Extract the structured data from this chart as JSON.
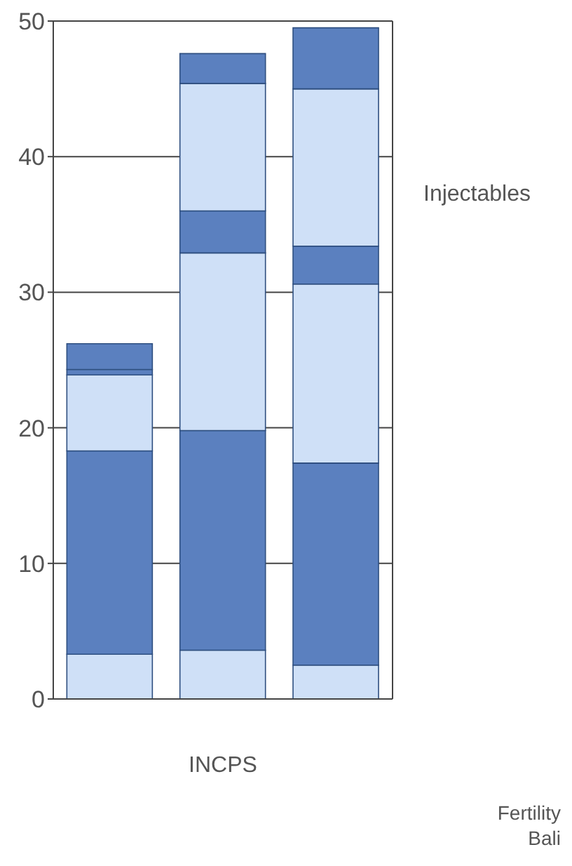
{
  "chart_data": {
    "type": "bar",
    "stacked": true,
    "xlabel": "INCPS",
    "categories": [
      null,
      null,
      null
    ],
    "series": [
      {
        "color": "#cfe0f7",
        "values": [
          3.3,
          3.6,
          2.5
        ]
      },
      {
        "color": "#5b80bf",
        "values": [
          15.0,
          16.2,
          14.9
        ]
      },
      {
        "color": "#cfe0f7",
        "values": [
          5.6,
          13.1,
          13.2
        ]
      },
      {
        "color": "#5b80bf",
        "values": [
          0.4,
          3.1,
          2.8
        ]
      },
      {
        "color": "#cfe0f7",
        "values": [
          null,
          9.4,
          11.6
        ]
      },
      {
        "color": "#5b80bf",
        "values": [
          1.9,
          2.2,
          4.5
        ]
      }
    ],
    "ylim": [
      0,
      50
    ],
    "yticks": [
      0,
      10,
      20,
      30,
      40,
      50
    ],
    "grid": "y",
    "annotations": [
      "Injectables",
      "Fertility",
      "Bali"
    ]
  }
}
